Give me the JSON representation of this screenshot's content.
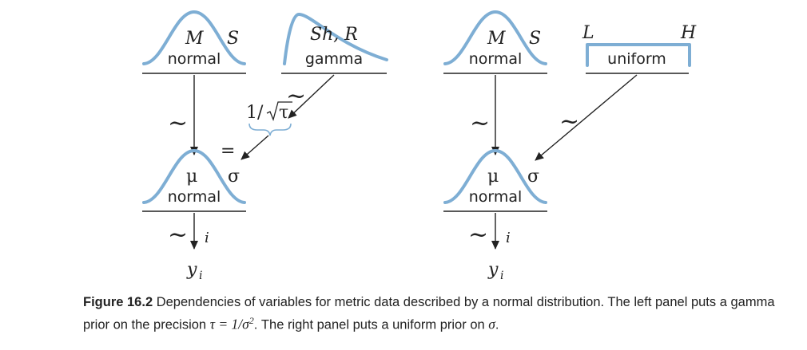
{
  "left_panel": {
    "top_normal": {
      "dist": "normal",
      "param1": "M",
      "param2": "S"
    },
    "gamma": {
      "dist": "gamma",
      "params": "Sh, R"
    },
    "transform": {
      "prefix": "1/",
      "radicand": "τ",
      "equals": "="
    },
    "likelihood": {
      "dist": "normal",
      "param1": "μ",
      "param2": "σ"
    },
    "tilde": "~",
    "index": "i",
    "data_var": "y",
    "data_sub": "i"
  },
  "right_panel": {
    "top_normal": {
      "dist": "normal",
      "param1": "M",
      "param2": "S"
    },
    "uniform": {
      "dist": "uniform",
      "low": "L",
      "high": "H"
    },
    "likelihood": {
      "dist": "normal",
      "param1": "μ",
      "param2": "σ"
    },
    "tilde": "~",
    "index": "i",
    "data_var": "y",
    "data_sub": "i"
  },
  "caption": {
    "label": "Figure 16.2",
    "text_1": "Dependencies of variables for metric data described by a normal distribution. The left panel puts a gamma prior on the precision",
    "math_1": "τ = 1/σ",
    "math_1_sup": "2",
    "text_2": ". The right panel puts a uniform prior on",
    "math_2": "σ",
    "text_3": "."
  },
  "colors": {
    "curve": "#7eaed4",
    "ink": "#222222"
  }
}
